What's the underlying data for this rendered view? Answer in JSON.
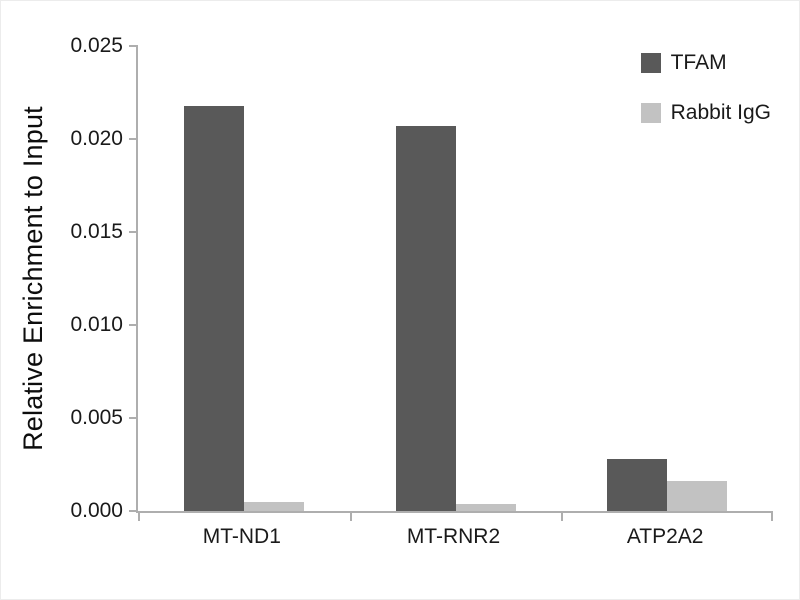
{
  "chart_data": {
    "type": "bar",
    "title": "",
    "xlabel": "",
    "ylabel": "Relative Enrichment to Input",
    "categories": [
      "MT-ND1",
      "MT-RNR2",
      "ATP2A2"
    ],
    "series": [
      {
        "name": "TFAM",
        "color": "#595959",
        "values": [
          0.0218,
          0.0207,
          0.0028
        ]
      },
      {
        "name": "Rabbit IgG",
        "color": "#c2c2c2",
        "values": [
          0.0005,
          0.0004,
          0.0016
        ]
      }
    ],
    "ylim": [
      0,
      0.025
    ],
    "yticks": [
      0,
      0.005,
      0.01,
      0.015,
      0.02,
      0.025
    ],
    "ytick_labels": [
      "0.000",
      "0.005",
      "0.010",
      "0.015",
      "0.020",
      "0.025"
    ],
    "grid": false,
    "legend_position": "top-right",
    "axis_color": "#aeaeae"
  }
}
